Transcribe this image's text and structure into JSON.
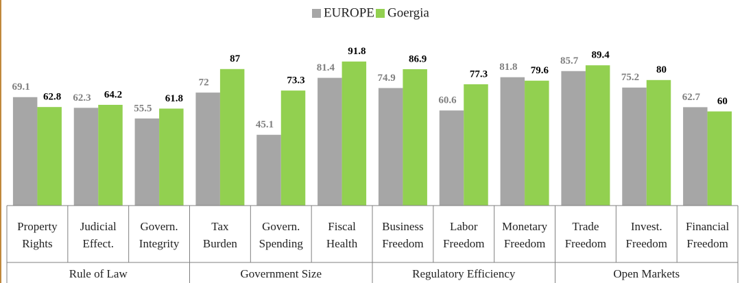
{
  "chart_data": {
    "type": "bar",
    "groups": [
      {
        "name": "Rule of Law",
        "categories": [
          [
            "Property",
            "Rights"
          ],
          [
            "Judicial",
            "Effect."
          ],
          [
            "Govern.",
            "Integrity"
          ]
        ]
      },
      {
        "name": "Government Size",
        "categories": [
          [
            "Tax",
            "Burden"
          ],
          [
            "Govern.",
            "Spending"
          ],
          [
            "Fiscal",
            "Health"
          ]
        ]
      },
      {
        "name": "Regulatory Efficiency",
        "categories": [
          [
            "Business",
            "Freedom"
          ],
          [
            "Labor",
            "Freedom"
          ],
          [
            "Monetary",
            "Freedom"
          ]
        ]
      },
      {
        "name": "Open Markets",
        "categories": [
          [
            "Trade",
            "Freedom"
          ],
          [
            "Invest.",
            "Freedom"
          ],
          [
            "Financial",
            "Freedom"
          ]
        ]
      }
    ],
    "series": [
      {
        "name": "EUROPE",
        "color": "#a6a6a6",
        "label_color": "#7f7f7f",
        "values": [
          69.1,
          62.3,
          55.5,
          72,
          45.1,
          81.4,
          74.9,
          60.6,
          81.8,
          85.7,
          75.2,
          62.7
        ]
      },
      {
        "name": "Goergia",
        "color": "#92d050",
        "label_color": "#000000",
        "values": [
          62.8,
          64.2,
          61.8,
          87,
          73.3,
          91.8,
          86.9,
          77.3,
          79.6,
          89.4,
          80,
          60
        ]
      }
    ],
    "legend": "top"
  }
}
